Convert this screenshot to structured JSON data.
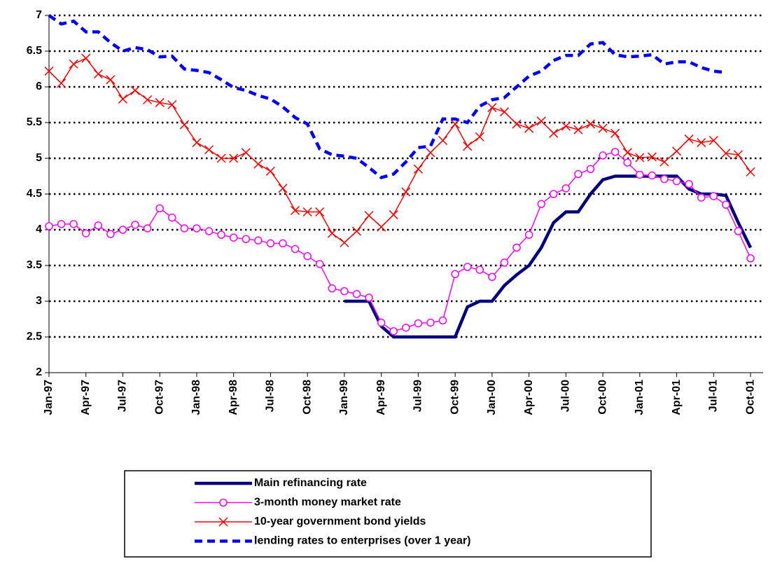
{
  "chart_data": {
    "type": "line",
    "categories": [
      "Jan-97",
      null,
      null,
      "Apr-97",
      null,
      null,
      "Jul-97",
      null,
      null,
      "Oct-97",
      null,
      null,
      "Jan-98",
      null,
      null,
      "Apr-98",
      null,
      null,
      "Jul-98",
      null,
      null,
      "Oct-98",
      null,
      null,
      "Jan-99",
      null,
      null,
      "Apr-99",
      null,
      null,
      "Jul-99",
      null,
      null,
      "Oct-99",
      null,
      null,
      "Jan-00",
      null,
      null,
      "Apr-00",
      null,
      null,
      "Jul-00",
      null,
      null,
      "Oct-00",
      null,
      null,
      "Jan-01",
      null,
      null,
      "Apr-01",
      null,
      null,
      "Jul-01",
      null,
      null,
      "Oct-01"
    ],
    "ylim": [
      2,
      7
    ],
    "yticks": [
      2,
      2.5,
      3,
      3.5,
      4,
      4.5,
      5,
      5.5,
      6,
      6.5,
      7
    ],
    "grid": true,
    "series": [
      {
        "name": "Main refinancing rate",
        "color": "#000080",
        "marker": "none",
        "dash": false,
        "values": [
          null,
          null,
          null,
          null,
          null,
          null,
          null,
          null,
          null,
          null,
          null,
          null,
          null,
          null,
          null,
          null,
          null,
          null,
          null,
          null,
          null,
          null,
          null,
          null,
          3.0,
          3.0,
          3.0,
          2.65,
          2.5,
          2.5,
          2.5,
          2.5,
          2.5,
          2.5,
          2.92,
          3.0,
          3.0,
          3.22,
          3.37,
          3.5,
          3.75,
          4.1,
          4.25,
          4.25,
          4.5,
          4.7,
          4.75,
          4.75,
          4.75,
          4.75,
          4.75,
          4.75,
          4.57,
          4.5,
          4.5,
          4.48,
          4.1,
          3.75
        ]
      },
      {
        "name": "3-month money market rate",
        "color": "#ff00ff",
        "marker": "circle",
        "dash": false,
        "values": [
          4.05,
          4.08,
          4.08,
          3.95,
          4.06,
          3.94,
          4.0,
          4.07,
          4.02,
          4.3,
          4.17,
          4.02,
          4.02,
          3.98,
          3.93,
          3.89,
          3.87,
          3.85,
          3.81,
          3.81,
          3.73,
          3.63,
          3.52,
          3.18,
          3.14,
          3.1,
          3.05,
          2.7,
          2.58,
          2.63,
          2.69,
          2.7,
          2.73,
          3.38,
          3.48,
          3.44,
          3.34,
          3.54,
          3.75,
          3.93,
          4.36,
          4.5,
          4.58,
          4.78,
          4.85,
          5.04,
          5.09,
          4.94,
          4.77,
          4.76,
          4.71,
          4.68,
          4.64,
          4.45,
          4.47,
          4.35,
          3.98,
          3.6
        ]
      },
      {
        "name": "10-year government bond yields",
        "color": "#ff0000",
        "marker": "x",
        "dash": false,
        "values": [
          6.22,
          6.05,
          6.32,
          6.4,
          6.18,
          6.1,
          5.83,
          5.95,
          5.82,
          5.78,
          5.75,
          5.47,
          5.22,
          5.12,
          5.0,
          5.0,
          5.08,
          4.92,
          4.82,
          4.58,
          4.27,
          4.25,
          4.25,
          3.95,
          3.82,
          3.98,
          4.2,
          4.04,
          4.21,
          4.53,
          4.85,
          5.08,
          5.25,
          5.48,
          5.17,
          5.3,
          5.71,
          5.65,
          5.48,
          5.42,
          5.52,
          5.35,
          5.45,
          5.4,
          5.48,
          5.42,
          5.35,
          5.08,
          5.01,
          5.02,
          4.95,
          5.1,
          5.27,
          5.22,
          5.25,
          5.07,
          5.05,
          4.81
        ]
      },
      {
        "name": "lending rates to enterprises (over 1 year)",
        "color": "#0000ff",
        "marker": "none",
        "dash": true,
        "values": [
          7.0,
          6.88,
          6.92,
          6.77,
          6.77,
          6.62,
          6.5,
          6.55,
          6.52,
          6.42,
          6.43,
          6.25,
          6.23,
          6.2,
          6.1,
          5.99,
          5.95,
          5.88,
          5.83,
          5.72,
          5.57,
          5.48,
          5.13,
          5.05,
          5.03,
          5.0,
          4.87,
          4.73,
          4.78,
          4.95,
          5.15,
          5.17,
          5.55,
          5.55,
          5.5,
          5.73,
          5.82,
          5.85,
          6.0,
          6.15,
          6.22,
          6.37,
          6.44,
          6.44,
          6.6,
          6.62,
          6.45,
          6.42,
          6.43,
          6.45,
          6.32,
          6.35,
          6.35,
          6.27,
          6.22,
          6.2,
          null,
          null
        ]
      }
    ]
  }
}
